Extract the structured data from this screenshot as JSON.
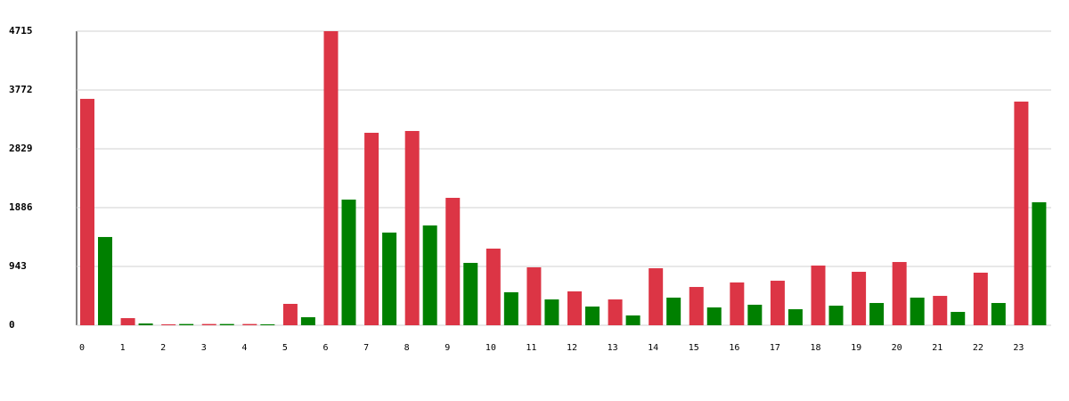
{
  "chart_data": {
    "type": "bar",
    "categories": [
      "0",
      "1",
      "2",
      "3",
      "4",
      "5",
      "6",
      "7",
      "8",
      "9",
      "10",
      "11",
      "12",
      "13",
      "14",
      "15",
      "16",
      "17",
      "18",
      "19",
      "20",
      "21",
      "22",
      "23"
    ],
    "series": [
      {
        "color": "#dc3545",
        "values": [
          3630,
          114,
          15,
          20,
          20,
          343,
          4715,
          3086,
          3115,
          2043,
          1229,
          929,
          543,
          414,
          914,
          614,
          686,
          714,
          957,
          857,
          1014,
          471,
          843,
          3586
        ]
      },
      {
        "color": "#008000",
        "values": [
          1415,
          29,
          20,
          20,
          15,
          129,
          2015,
          1486,
          1600,
          1000,
          529,
          414,
          300,
          157,
          443,
          286,
          329,
          257,
          314,
          357,
          443,
          214,
          357,
          1972
        ]
      }
    ],
    "ylim": [
      0,
      4715
    ],
    "yticks": [
      0,
      943,
      1886,
      2829,
      3772,
      4715
    ],
    "grid": true
  }
}
